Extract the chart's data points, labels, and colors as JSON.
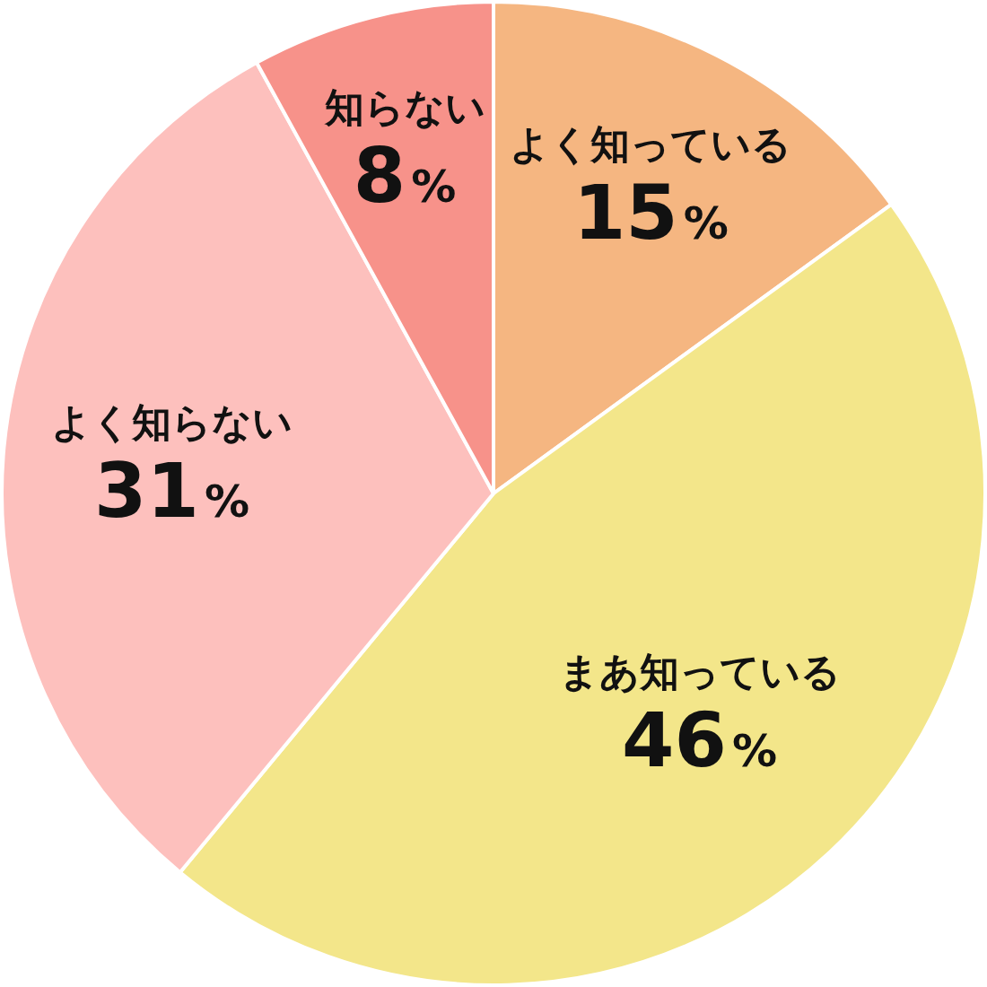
{
  "chart_data": {
    "type": "pie",
    "categories": [
      "よく知っている",
      "まあ知っている",
      "よく知らない",
      "知らない"
    ],
    "values": [
      15,
      46,
      31,
      8
    ],
    "colors": [
      "#f5b681",
      "#f3e68a",
      "#fdc0bd",
      "#f7928a"
    ],
    "value_labels": [
      "15%",
      "46%",
      "31%",
      "8%"
    ]
  }
}
